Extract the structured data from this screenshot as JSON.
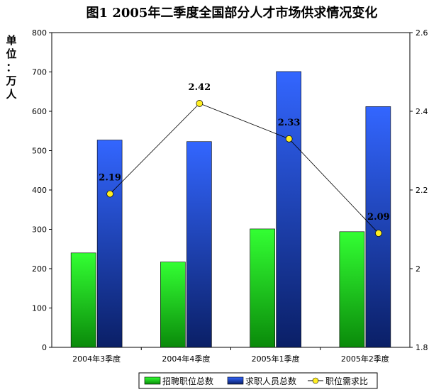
{
  "chart_data": {
    "type": "bar",
    "title": "图1 2005年二季度全国部分人才市场供求情况变化",
    "unit_label": "单位：万人",
    "categories": [
      "2004年3季度",
      "2004年4季度",
      "2005年1季度",
      "2005年2季度"
    ],
    "series": [
      {
        "name": "招聘职位总数",
        "type": "bar",
        "axis": "left",
        "values": [
          240,
          217,
          301,
          294
        ],
        "color": "#22dd22"
      },
      {
        "name": "求职人员总数",
        "type": "bar",
        "axis": "left",
        "values": [
          527,
          523,
          701,
          612
        ],
        "color": "#3355ee"
      },
      {
        "name": "职位需求比",
        "type": "line",
        "axis": "right",
        "values": [
          2.19,
          2.42,
          2.33,
          2.09
        ],
        "color": "#ffee22"
      }
    ],
    "ratio_labels": [
      "2.19",
      "2.42",
      "2.33",
      "2.09"
    ],
    "ylim_left": [
      0,
      800
    ],
    "yticks_left": [
      "0",
      "100",
      "200",
      "300",
      "400",
      "500",
      "600",
      "700",
      "800"
    ],
    "ylim_right": [
      1.8,
      2.6
    ],
    "yticks_right": [
      "1.8",
      "2",
      "2.2",
      "2.4",
      "2.6"
    ],
    "legend_position": "bottom",
    "grid": false
  }
}
